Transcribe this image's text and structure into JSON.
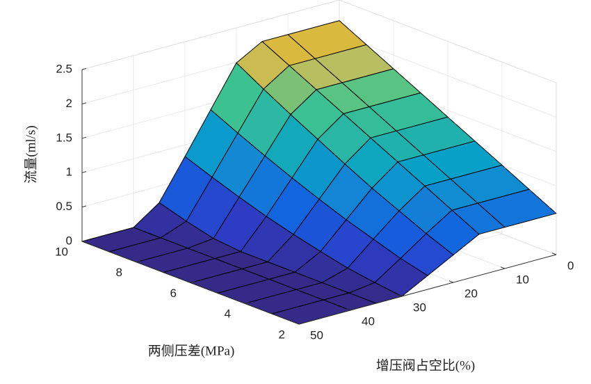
{
  "chart_data": {
    "type": "surface",
    "xlabel": "两侧压差(MPa)",
    "ylabel": "增压阀占空比(%)",
    "zlabel": "流量(ml/s)",
    "x": [
      2,
      3,
      4,
      5,
      6,
      7,
      8,
      9,
      10
    ],
    "y": [
      0,
      10,
      15,
      20,
      25,
      30,
      35,
      40,
      50
    ],
    "z": [
      [
        0.6,
        0.6,
        0.6,
        0.4,
        0.2,
        0,
        0,
        0,
        0
      ],
      [
        0.8,
        0.8,
        0.8,
        0.56,
        0.3,
        0.05,
        0,
        0,
        0
      ],
      [
        1.0,
        1.0,
        1.0,
        0.74,
        0.43,
        0.11,
        0,
        0,
        0
      ],
      [
        1.2,
        1.2,
        1.2,
        0.92,
        0.56,
        0.2,
        0,
        0,
        0
      ],
      [
        1.4,
        1.4,
        1.4,
        1.12,
        0.71,
        0.3,
        0,
        0,
        0
      ],
      [
        1.6,
        1.6,
        1.6,
        1.33,
        0.87,
        0.41,
        0,
        0,
        0
      ],
      [
        1.8,
        1.8,
        1.8,
        1.54,
        1.04,
        0.54,
        0.04,
        0,
        0
      ],
      [
        2.0,
        2.0,
        2.0,
        1.76,
        1.22,
        0.68,
        0.14,
        0,
        0
      ],
      [
        2.2,
        2.2,
        2.2,
        1.99,
        1.41,
        0.83,
        0.26,
        0,
        0
      ]
    ],
    "xlim": [
      2,
      10
    ],
    "ylim": [
      0,
      50
    ],
    "zlim": [
      0,
      2.5
    ],
    "xticks": [
      2,
      4,
      6,
      8,
      10
    ],
    "yticks": [
      0,
      10,
      20,
      30,
      40,
      50
    ],
    "zticks": [
      0,
      0.5,
      1,
      1.5,
      2,
      2.5
    ],
    "grid": true,
    "edge_color": "#000000",
    "colormap": [
      "#352a87",
      "#2c3ec9",
      "#1262e0",
      "#1484d4",
      "#07a1c8",
      "#2bb7a3",
      "#40c48c",
      "#c2bd5a",
      "#e6b830"
    ]
  }
}
